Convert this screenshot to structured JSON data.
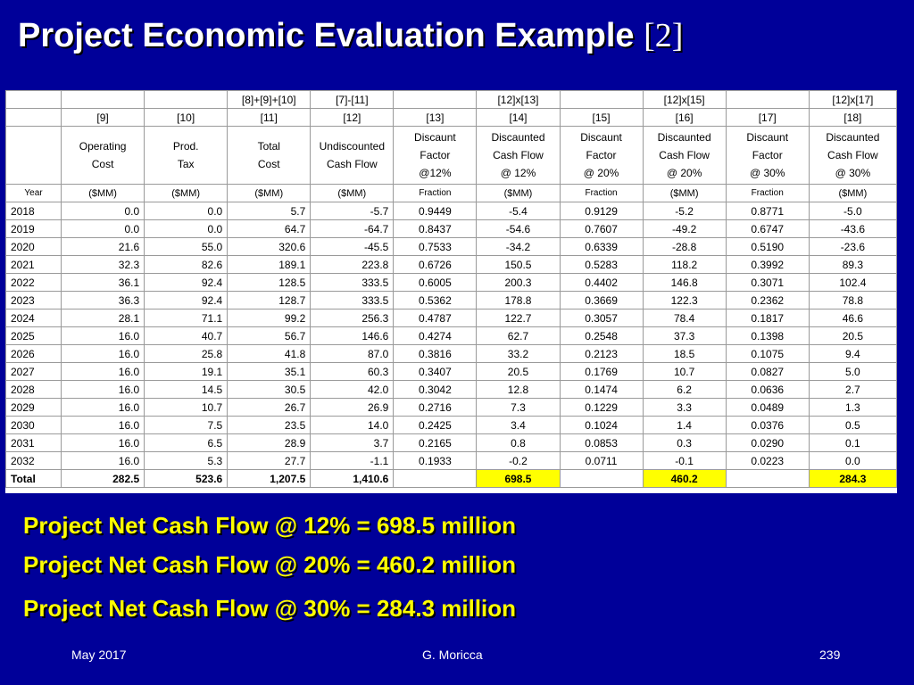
{
  "title": {
    "main": "Project Economic Evaluation Example",
    "ref": "[2]"
  },
  "table": {
    "formula_row": [
      "",
      "",
      "",
      "[8]+[9]+[10]",
      "[7]-[11]",
      "",
      "[12]x[13]",
      "",
      "[12]x[15]",
      "",
      "[12]x[17]"
    ],
    "num_row": [
      "",
      "[9]",
      "[10]",
      "[11]",
      "[12]",
      "[13]",
      "[14]",
      "[15]",
      "[16]",
      "[17]",
      "[18]"
    ],
    "desc_row": [
      [
        ""
      ],
      [
        "Operating",
        "Cost"
      ],
      [
        "Prod.",
        "Tax"
      ],
      [
        "Total",
        "Cost"
      ],
      [
        "Undiscounted",
        "Cash Flow"
      ],
      [
        "Discaunt",
        "Factor",
        "@12%"
      ],
      [
        "Discaunted",
        "Cash Flow",
        "@ 12%"
      ],
      [
        "Discaunt",
        "Factor",
        "@ 20%"
      ],
      [
        "Discaunted",
        "Cash Flow",
        "@ 20%"
      ],
      [
        "Discaunt",
        "Factor",
        "@ 30%"
      ],
      [
        "Discaunted",
        "Cash Flow",
        "@ 30%"
      ]
    ],
    "units_row": [
      "Year",
      "($MM)",
      "($MM)",
      "($MM)",
      "($MM)",
      "Fraction",
      "($MM)",
      "Fraction",
      "($MM)",
      "Fraction",
      "($MM)"
    ],
    "rows": [
      [
        "2018",
        "0.0",
        "0.0",
        "5.7",
        "-5.7",
        "0.9449",
        "-5.4",
        "0.9129",
        "-5.2",
        "0.8771",
        "-5.0"
      ],
      [
        "2019",
        "0.0",
        "0.0",
        "64.7",
        "-64.7",
        "0.8437",
        "-54.6",
        "0.7607",
        "-49.2",
        "0.6747",
        "-43.6"
      ],
      [
        "2020",
        "21.6",
        "55.0",
        "320.6",
        "-45.5",
        "0.7533",
        "-34.2",
        "0.6339",
        "-28.8",
        "0.5190",
        "-23.6"
      ],
      [
        "2021",
        "32.3",
        "82.6",
        "189.1",
        "223.8",
        "0.6726",
        "150.5",
        "0.5283",
        "118.2",
        "0.3992",
        "89.3"
      ],
      [
        "2022",
        "36.1",
        "92.4",
        "128.5",
        "333.5",
        "0.6005",
        "200.3",
        "0.4402",
        "146.8",
        "0.3071",
        "102.4"
      ],
      [
        "2023",
        "36.3",
        "92.4",
        "128.7",
        "333.5",
        "0.5362",
        "178.8",
        "0.3669",
        "122.3",
        "0.2362",
        "78.8"
      ],
      [
        "2024",
        "28.1",
        "71.1",
        "99.2",
        "256.3",
        "0.4787",
        "122.7",
        "0.3057",
        "78.4",
        "0.1817",
        "46.6"
      ],
      [
        "2025",
        "16.0",
        "40.7",
        "56.7",
        "146.6",
        "0.4274",
        "62.7",
        "0.2548",
        "37.3",
        "0.1398",
        "20.5"
      ],
      [
        "2026",
        "16.0",
        "25.8",
        "41.8",
        "87.0",
        "0.3816",
        "33.2",
        "0.2123",
        "18.5",
        "0.1075",
        "9.4"
      ],
      [
        "2027",
        "16.0",
        "19.1",
        "35.1",
        "60.3",
        "0.3407",
        "20.5",
        "0.1769",
        "10.7",
        "0.0827",
        "5.0"
      ],
      [
        "2028",
        "16.0",
        "14.5",
        "30.5",
        "42.0",
        "0.3042",
        "12.8",
        "0.1474",
        "6.2",
        "0.0636",
        "2.7"
      ],
      [
        "2029",
        "16.0",
        "10.7",
        "26.7",
        "26.9",
        "0.2716",
        "7.3",
        "0.1229",
        "3.3",
        "0.0489",
        "1.3"
      ],
      [
        "2030",
        "16.0",
        "7.5",
        "23.5",
        "14.0",
        "0.2425",
        "3.4",
        "0.1024",
        "1.4",
        "0.0376",
        "0.5"
      ],
      [
        "2031",
        "16.0",
        "6.5",
        "28.9",
        "3.7",
        "0.2165",
        "0.8",
        "0.0853",
        "0.3",
        "0.0290",
        "0.1"
      ],
      [
        "2032",
        "16.0",
        "5.3",
        "27.7",
        "-1.1",
        "0.1933",
        "-0.2",
        "0.0711",
        "-0.1",
        "0.0223",
        "0.0"
      ]
    ],
    "total_row": [
      "Total",
      "282.5",
      "523.6",
      "1,207.5",
      "1,410.6",
      "",
      "698.5",
      "",
      "460.2",
      "",
      "284.3"
    ],
    "highlight_color": "#ffff00"
  },
  "summary": [
    "Project Net Cash Flow @ 12% = 698.5 million",
    "Project Net Cash Flow @ 20% = 460.2 million",
    "Project Net Cash Flow @ 30% = 284.3 million"
  ],
  "footer": {
    "date": "May 2017",
    "author": "G. Moricca",
    "page": "239"
  },
  "colors": {
    "background": "#000099",
    "title": "#ffffff",
    "summary": "#ffff00"
  }
}
